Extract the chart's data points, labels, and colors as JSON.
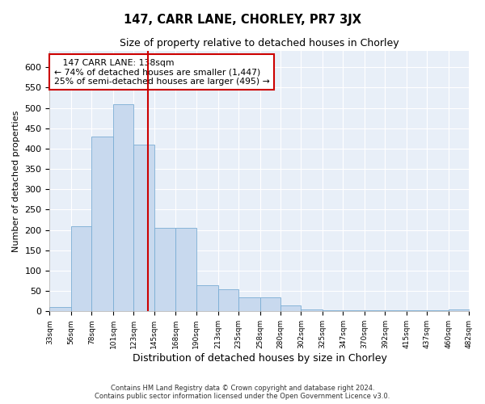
{
  "title": "147, CARR LANE, CHORLEY, PR7 3JX",
  "subtitle": "Size of property relative to detached houses in Chorley",
  "xlabel": "Distribution of detached houses by size in Chorley",
  "ylabel": "Number of detached properties",
  "footer_line1": "Contains HM Land Registry data © Crown copyright and database right 2024.",
  "footer_line2": "Contains public sector information licensed under the Open Government Licence v3.0.",
  "annotation_line1": "   147 CARR LANE: 138sqm",
  "annotation_line2": "← 74% of detached houses are smaller (1,447)",
  "annotation_line3": "25% of semi-detached houses are larger (495) →",
  "property_size": 138,
  "bar_color": "#c8d9ee",
  "bar_edge_color": "#7aadd4",
  "vline_color": "#cc0000",
  "background_color": "#e8eff8",
  "annotation_box_edge": "#cc0000",
  "grid_color": "#ffffff",
  "bin_edges": [
    33,
    56,
    78,
    101,
    123,
    145,
    168,
    190,
    213,
    235,
    258,
    280,
    302,
    325,
    347,
    370,
    392,
    415,
    437,
    460,
    482
  ],
  "bin_labels": [
    "33sqm",
    "56sqm",
    "78sqm",
    "101sqm",
    "123sqm",
    "145sqm",
    "168sqm",
    "190sqm",
    "213sqm",
    "235sqm",
    "258sqm",
    "280sqm",
    "302sqm",
    "325sqm",
    "347sqm",
    "370sqm",
    "392sqm",
    "415sqm",
    "437sqm",
    "460sqm",
    "482sqm"
  ],
  "bar_heights": [
    10,
    210,
    430,
    510,
    410,
    205,
    205,
    65,
    55,
    35,
    35,
    14,
    5,
    2,
    2,
    2,
    2,
    2,
    2,
    5
  ],
  "ylim": [
    0,
    640
  ],
  "yticks": [
    0,
    50,
    100,
    150,
    200,
    250,
    300,
    350,
    400,
    450,
    500,
    550,
    600
  ]
}
